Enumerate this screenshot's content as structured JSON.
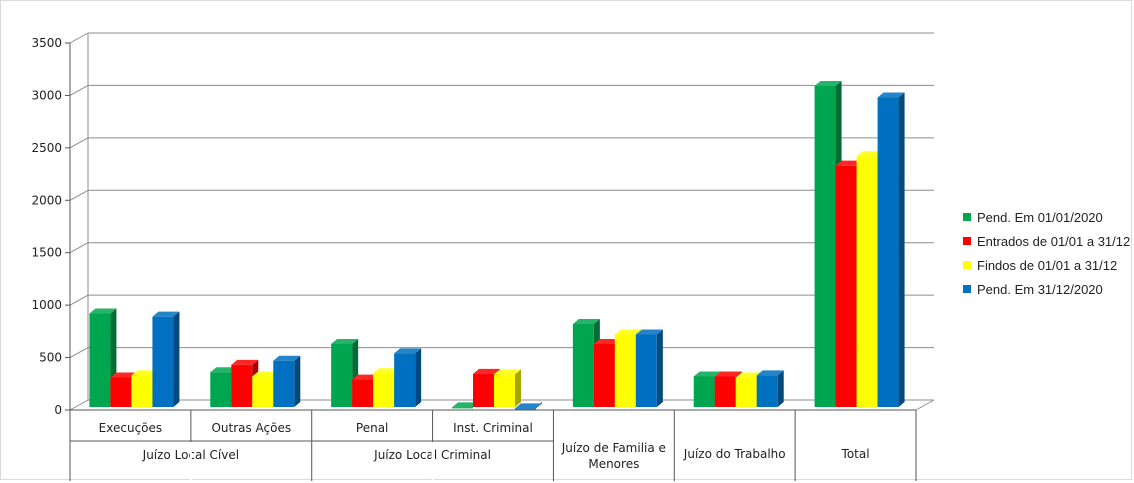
{
  "chart_data": {
    "type": "bar",
    "title": "",
    "xlabel": "",
    "ylabel": "",
    "ylim": [
      0,
      3500
    ],
    "yticks": [
      "0",
      "500",
      "1000",
      "1500",
      "2000",
      "2500",
      "3000",
      "3500"
    ],
    "grid": true,
    "legend_position": "right",
    "categories": [
      "Execuções",
      "Outras Ações",
      "Penal",
      "Inst. Criminal",
      "Juízo de Familia e Menores",
      "Juízo do Trabalho",
      "Total"
    ],
    "groups": [
      {
        "label": "Juízo Local Cível",
        "categories": [
          "Execuções",
          "Outras Ações"
        ]
      },
      {
        "label": "Juízo Local Criminal",
        "categories": [
          "Penal",
          "Inst. Criminal"
        ]
      }
    ],
    "series": [
      {
        "name": "Pend. Em 01/01/2020",
        "color": "#00a550",
        "values": [
          920,
          360,
          630,
          25,
          820,
          320,
          3090
        ]
      },
      {
        "name": "Entrados de 01/01 a 31/12",
        "color": "#ff0000",
        "values": [
          310,
          430,
          290,
          345,
          630,
          320,
          2330
        ]
      },
      {
        "name": "Findos de 01/01 a 31/12",
        "color": "#ffff00",
        "values": [
          330,
          320,
          350,
          340,
          720,
          310,
          2420
        ]
      },
      {
        "name": "Pend. Em 31/12/2020",
        "color": "#0070c0",
        "values": [
          890,
          470,
          540,
          15,
          720,
          330,
          2980
        ]
      }
    ]
  }
}
